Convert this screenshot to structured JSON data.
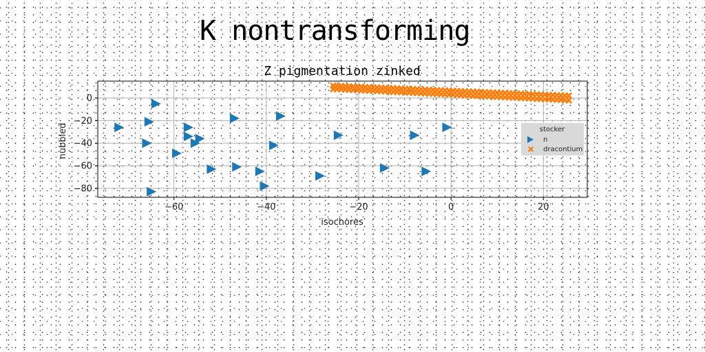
{
  "figure": {
    "title": "K nontransforming"
  },
  "chart_data": {
    "type": "scatter",
    "title": "Z pigmentation zinked",
    "xlabel": "isochores",
    "ylabel": "nubbled",
    "xlim": [
      -76.5,
      29.5
    ],
    "ylim": [
      -88,
      15
    ],
    "xticks": [
      -60,
      -40,
      -20,
      0,
      20
    ],
    "yticks": [
      0,
      -20,
      -40,
      -60,
      -80
    ],
    "grid": true,
    "legend": {
      "title": "stocker",
      "placement": "right"
    },
    "series": [
      {
        "name": "n",
        "marker": "triangle-right",
        "color": "#1f77b4",
        "x": [
          -72.0,
          -65.5,
          -64.0,
          -66.0,
          -57.0,
          -57.0,
          -55.5,
          -54.5,
          -59.5,
          -65.0,
          -52.0,
          -47.0,
          -46.5,
          -41.5,
          -40.5,
          -38.5,
          -37.0,
          -28.5,
          -24.5,
          -14.5,
          -8.0,
          -5.5,
          -1.0
        ],
        "y": [
          -26,
          -21,
          -5,
          -40,
          -26,
          -34,
          -40,
          -36,
          -49,
          -83,
          -63,
          -18,
          -61,
          -65,
          -78,
          -42,
          -16,
          -69,
          -33,
          -62,
          -33,
          -65,
          -26
        ]
      },
      {
        "name": "dracontium",
        "marker": "x-filled",
        "color": "#ff7f0e",
        "band": {
          "x_start": -25.5,
          "x_end": 25.5,
          "count": 60,
          "upper_start": 11,
          "upper_end": 2,
          "lower_start": 8,
          "lower_end": -2
        }
      }
    ]
  }
}
